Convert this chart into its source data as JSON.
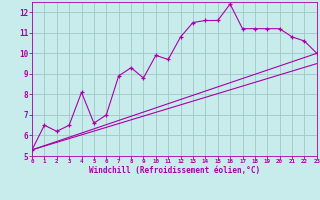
{
  "title": "",
  "xlabel": "Windchill (Refroidissement éolien,°C)",
  "ylabel": "",
  "bg_color": "#c8ecec",
  "grid_color": "#a0c8c8",
  "line_color": "#aa00aa",
  "xlim": [
    0,
    23
  ],
  "ylim": [
    5,
    12.5
  ],
  "yticks": [
    5,
    6,
    7,
    8,
    9,
    10,
    11,
    12
  ],
  "xticks": [
    0,
    1,
    2,
    3,
    4,
    5,
    6,
    7,
    8,
    9,
    10,
    11,
    12,
    13,
    14,
    15,
    16,
    17,
    18,
    19,
    20,
    21,
    22,
    23
  ],
  "series1_x": [
    0,
    1,
    2,
    3,
    4,
    5,
    6,
    7,
    8,
    9,
    10,
    11,
    12,
    13,
    14,
    15,
    16,
    17,
    18,
    19,
    20,
    21,
    22,
    23
  ],
  "series1_y": [
    5.3,
    6.5,
    6.2,
    6.5,
    8.1,
    6.6,
    7.0,
    8.9,
    9.3,
    8.8,
    9.9,
    9.7,
    10.8,
    11.5,
    11.6,
    11.6,
    12.4,
    11.2,
    11.2,
    11.2,
    11.2,
    10.8,
    10.6,
    10.0
  ],
  "series2_x": [
    0,
    23
  ],
  "series2_y": [
    5.3,
    10.0
  ],
  "series3_x": [
    0,
    23
  ],
  "series3_y": [
    5.3,
    9.5
  ]
}
